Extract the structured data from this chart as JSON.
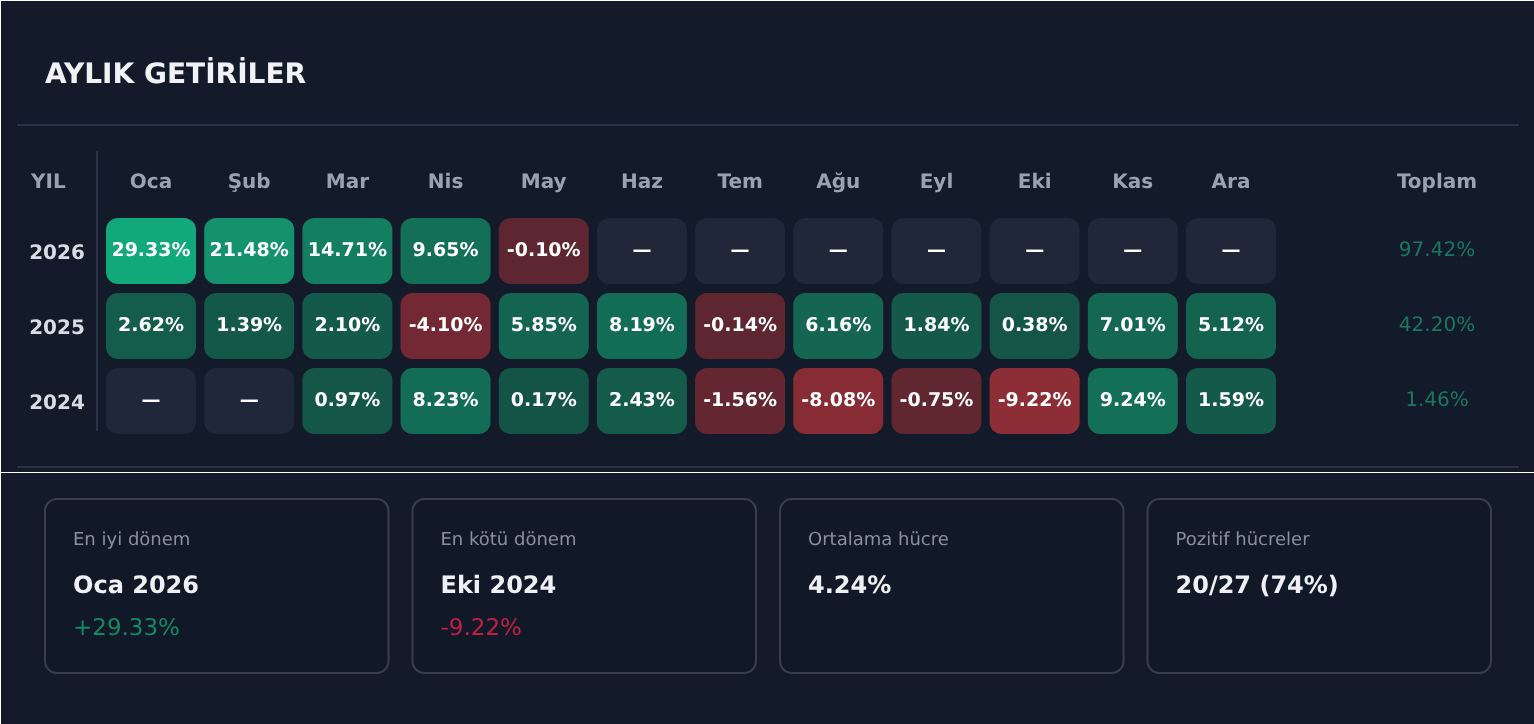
{
  "chart_data": [
    {
      "type": "heatmap",
      "title": "AYLIK GETİRİLER",
      "ylabel": "YIL",
      "y2label": "Toplam",
      "categories": [
        "Oca",
        "Şub",
        "Mar",
        "Nis",
        "May",
        "Haz",
        "Tem",
        "Ağu",
        "Eyl",
        "Eki",
        "Kas",
        "Ara"
      ],
      "y_categories": [
        "2026",
        "2025",
        "2024"
      ],
      "y2_categories": [
        "97.42%",
        "42.20%",
        "1.46%"
      ],
      "cells": [
        [
          29.33,
          21.48,
          14.71,
          9.65,
          -0.1,
          null,
          null,
          null,
          null,
          null,
          null,
          null
        ],
        [
          2.62,
          1.39,
          2.1,
          -4.1,
          5.85,
          8.19,
          -0.14,
          6.16,
          1.84,
          0.38,
          7.01,
          5.12
        ],
        [
          null,
          null,
          0.97,
          8.23,
          0.17,
          2.43,
          -1.56,
          -8.08,
          -0.75,
          -9.22,
          9.24,
          1.59
        ]
      ],
      "cell_labels": [
        [
          "29.33%",
          "21.48%",
          "14.71%",
          "9.65%",
          "-0.10%",
          "—",
          "—",
          "—",
          "—",
          "—",
          "—",
          "—"
        ],
        [
          "2.62%",
          "1.39%",
          "2.10%",
          "-4.10%",
          "5.85%",
          "8.19%",
          "-0.14%",
          "6.16%",
          "1.84%",
          "0.38%",
          "7.01%",
          "5.12%"
        ],
        [
          "—",
          "—",
          "0.97%",
          "8.23%",
          "0.17%",
          "2.43%",
          "-1.56%",
          "-8.08%",
          "-0.75%",
          "-9.22%",
          "9.24%",
          "1.59%"
        ]
      ]
    },
    {
      "type": "other",
      "categories": [
        "En iyi dönem",
        "En kötü dönem",
        "Ortalama hücre",
        "Pozitif hücreler"
      ],
      "value_labels": [
        "Oca 2026",
        "Eki 2024",
        "4.24%",
        "20/27 (74%)"
      ],
      "annotations": [
        "+29.33%",
        "-9.22%"
      ]
    }
  ]
}
